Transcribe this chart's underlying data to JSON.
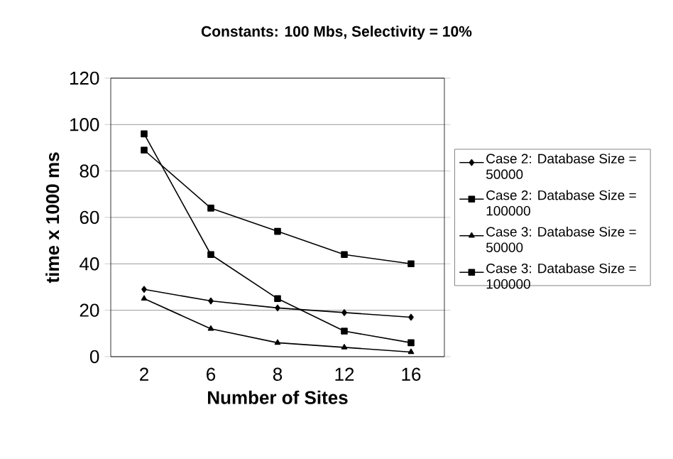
{
  "chart_data": {
    "type": "line",
    "title": "Constants: 100 Mbs, Selectivity = 10%",
    "xlabel": "Number of Sites",
    "ylabel": "time x 1000 ms",
    "categories": [
      "2",
      "6",
      "8",
      "12",
      "16"
    ],
    "series": [
      {
        "name": "Case 2: Database Size = 50000",
        "color": "#000000",
        "marker": "diamond",
        "values": [
          29,
          24,
          21,
          19,
          17
        ]
      },
      {
        "name": "Case 2: Database Size = 100000",
        "color": "#000000",
        "marker": "square",
        "values": [
          89,
          64,
          54,
          44,
          40
        ]
      },
      {
        "name": "Case 3: Database Size = 50000",
        "color": "#000000",
        "marker": "triangle",
        "values": [
          25,
          12,
          6,
          4,
          2
        ]
      },
      {
        "name": "Case 3: Database Size = 100000",
        "color": "#000000",
        "marker": "square",
        "values": [
          96,
          44,
          25,
          11,
          6
        ]
      }
    ],
    "ylim": [
      0,
      120
    ],
    "yticks": [
      0,
      20,
      40,
      60,
      80,
      100,
      120
    ],
    "grid": "y",
    "legend": "right",
    "line_style": "solid"
  }
}
